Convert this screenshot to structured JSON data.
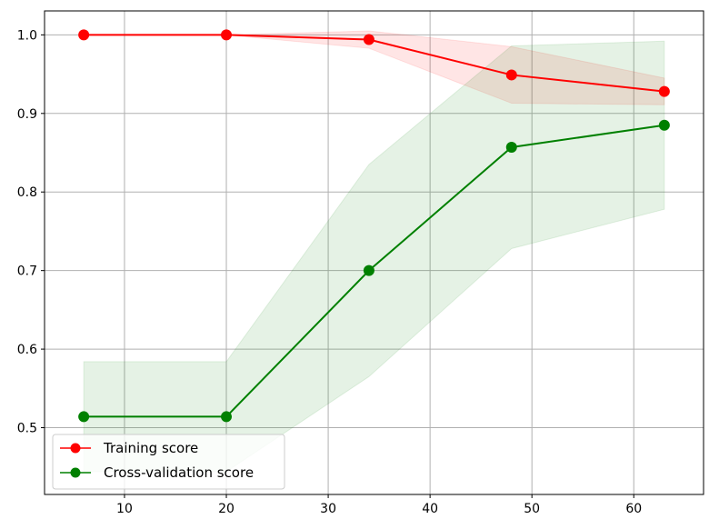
{
  "chart_data": {
    "type": "line",
    "title": "",
    "xlabel": "",
    "ylabel": "",
    "x": [
      6,
      20,
      34,
      48,
      63
    ],
    "xlim": [
      2.15,
      66.85
    ],
    "ylim": [
      0.415,
      1.0305
    ],
    "xticks": [
      10,
      20,
      30,
      40,
      50,
      60
    ],
    "yticks": [
      0.5,
      0.6,
      0.7,
      0.8,
      0.9,
      1.0
    ],
    "xtick_labels": [
      "10",
      "20",
      "30",
      "40",
      "50",
      "60"
    ],
    "ytick_labels": [
      "0.5",
      "0.6",
      "0.7",
      "0.8",
      "0.9",
      "1.0"
    ],
    "grid": true,
    "legend_position": "lower-left",
    "series": [
      {
        "name": "Training score",
        "color": "#ff0000",
        "values": [
          1.0,
          1.0,
          0.994,
          0.949,
          0.928
        ],
        "band_upper": [
          1.0,
          1.0,
          1.005,
          0.985,
          0.945
        ],
        "band_lower": [
          1.0,
          1.0,
          0.983,
          0.913,
          0.911
        ]
      },
      {
        "name": "Cross-validation score",
        "color": "#008000",
        "values": [
          0.514,
          0.514,
          0.7,
          0.857,
          0.885
        ],
        "band_upper": [
          0.584,
          0.584,
          0.835,
          0.986,
          0.992
        ],
        "band_lower": [
          0.444,
          0.444,
          0.565,
          0.728,
          0.778
        ]
      }
    ]
  }
}
